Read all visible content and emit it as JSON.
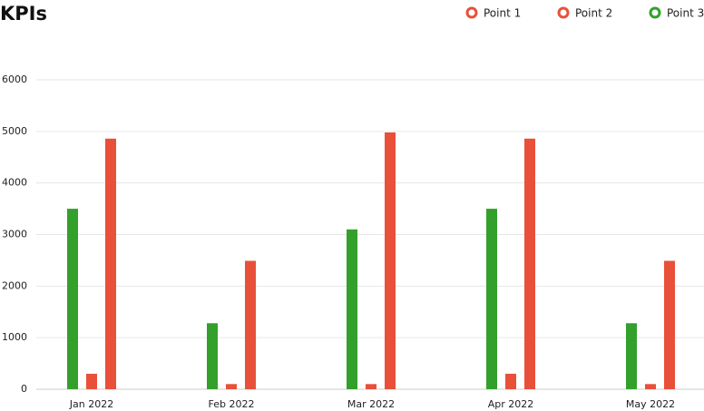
{
  "chart_data": {
    "type": "bar",
    "title": "KPIs",
    "categories": [
      "Jan 2022",
      "Feb 2022",
      "Mar 2022",
      "Apr 2022",
      "May 2022"
    ],
    "series": [
      {
        "name": "Point 1",
        "color": "#e8503a",
        "values": [
          4860,
          2490,
          4980,
          4860,
          2490
        ]
      },
      {
        "name": "Point 2",
        "color": "#e8503a",
        "values": [
          300,
          100,
          100,
          300,
          100
        ]
      },
      {
        "name": "Point 3",
        "color": "#33a02c",
        "values": [
          3500,
          1280,
          3100,
          3500,
          1280
        ]
      }
    ],
    "ylim": [
      0,
      6000
    ],
    "yticks": [
      0,
      1000,
      2000,
      3000,
      4000,
      5000,
      6000
    ],
    "grid": true
  }
}
